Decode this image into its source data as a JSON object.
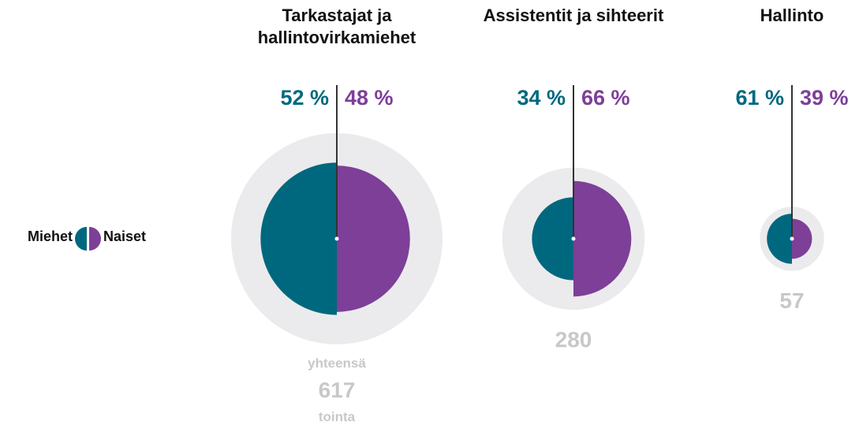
{
  "chart_data": {
    "type": "split-circle",
    "categories": [
      "Tarkastajat ja hallintovirkamiehet",
      "Assistentit ja sihteerit",
      "Hallinto"
    ],
    "series": [
      {
        "name": "Miehet",
        "color": "#00687e",
        "values": [
          52,
          34,
          61
        ],
        "value_labels": [
          "52 %",
          "34 %",
          "61 %"
        ]
      },
      {
        "name": "Naiset",
        "color": "#7d3f98",
        "values": [
          48,
          66,
          39
        ],
        "value_labels": [
          "48 %",
          "66 %",
          "39 %"
        ]
      }
    ],
    "totals": [
      617,
      280,
      57
    ],
    "total_label": "yhteensä",
    "total_unit": "tointa",
    "total_color": "#ebebed"
  }
}
